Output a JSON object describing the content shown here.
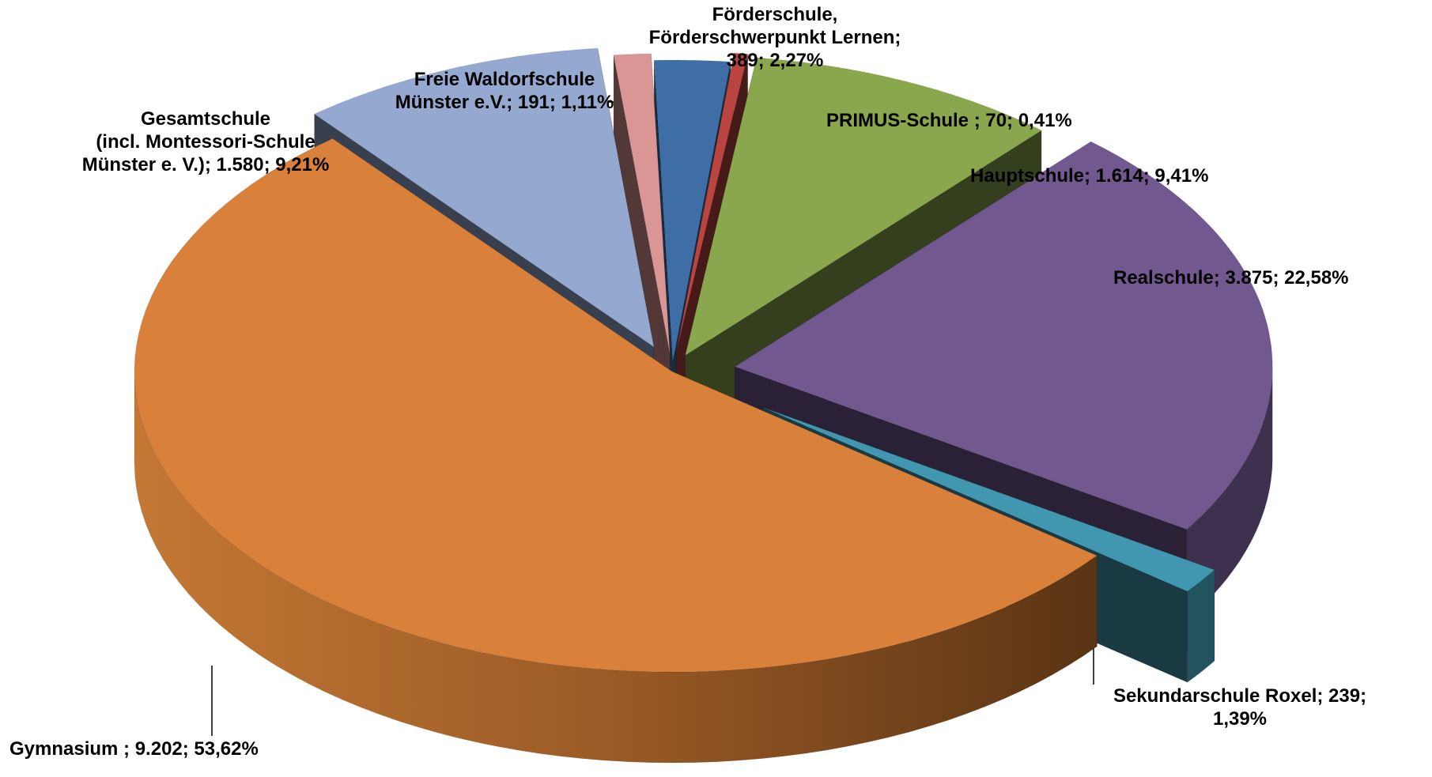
{
  "chart_data": {
    "type": "pie",
    "style": "3d exploded pie",
    "title": "",
    "slices": [
      {
        "name": "Förderschule, Förderschwerpunkt Lernen",
        "value": 389,
        "percent": 2.27,
        "color": "#3F6EA6",
        "label_lines": [
          "Förderschule,",
          "Förderschwerpunkt Lernen;",
          "389; 2,27%"
        ]
      },
      {
        "name": "PRIMUS-Schule",
        "value": 70,
        "percent": 0.41,
        "color": "#B94440",
        "label_lines": [
          "PRIMUS-Schule ; 70; 0,41%"
        ]
      },
      {
        "name": "Hauptschule",
        "value": 1614,
        "percent": 9.41,
        "color": "#8AA74E",
        "label_lines": [
          "Hauptschule; 1.614; 9,41%"
        ]
      },
      {
        "name": "Realschule",
        "value": 3875,
        "percent": 22.58,
        "color": "#71588F",
        "label_lines": [
          "Realschule; 3.875; 22,58%"
        ]
      },
      {
        "name": "Sekundarschule Roxel",
        "value": 239,
        "percent": 1.39,
        "color": "#4197AF",
        "label_lines": [
          "Sekundarschule Roxel; 239;",
          "1,39%"
        ]
      },
      {
        "name": "Gymnasium",
        "value": 9202,
        "percent": 53.62,
        "color": "#D9803B",
        "label_lines": [
          "Gymnasium ; 9.202; 53,62%"
        ]
      },
      {
        "name": "Gesamtschule (incl. Montessori-Schule Münster e. V.)",
        "value": 1580,
        "percent": 9.21,
        "color": "#94A8D0",
        "label_lines": [
          "Gesamtschule",
          "(incl. Montessori-Schule",
          "Münster e. V.); 1.580; 9,21%"
        ]
      },
      {
        "name": "Freie Waldorfschule Münster e.V.",
        "value": 191,
        "percent": 1.11,
        "color": "#D99694",
        "label_lines": [
          "Freie Waldorfschule",
          "Münster e.V.; 191; 1,11%"
        ]
      }
    ]
  }
}
